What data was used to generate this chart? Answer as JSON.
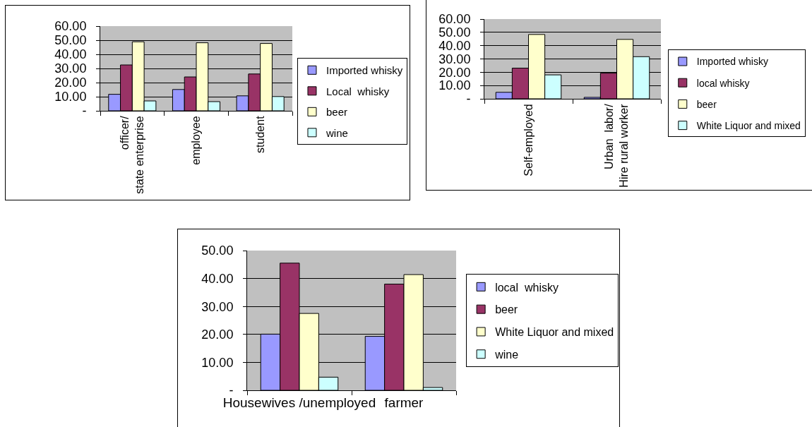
{
  "chart_data": [
    {
      "type": "bar",
      "categories": [
        "officer/\nstate enterprise",
        "employee",
        "student"
      ],
      "series": [
        {
          "name": "Imported whisky",
          "color": "#9999ff",
          "values": [
            11.7,
            15.1,
            10.6
          ]
        },
        {
          "name": "Local  whisky",
          "color": "#993366",
          "values": [
            32.5,
            24.0,
            26.1
          ]
        },
        {
          "name": "beer",
          "color": "#ffffcc",
          "values": [
            48.9,
            48.2,
            47.7
          ]
        },
        {
          "name": "wine",
          "color": "#ccffff",
          "values": [
            7.0,
            6.5,
            10.1
          ]
        }
      ],
      "ylim": [
        0,
        60
      ],
      "yticks": [
        {
          "value": 0,
          "label": "-"
        },
        {
          "value": 10,
          "label": "10.00"
        },
        {
          "value": 20,
          "label": "20.00"
        },
        {
          "value": 30,
          "label": "30.00"
        },
        {
          "value": 40,
          "label": "40.00"
        },
        {
          "value": 50,
          "label": "50.00"
        },
        {
          "value": 60,
          "label": "60.00"
        }
      ],
      "grid": "y",
      "legend": "right"
    },
    {
      "type": "bar",
      "categories": [
        "Self-employed",
        "Urban  labor/\nHire rural worker"
      ],
      "series": [
        {
          "name": "Imported whisky",
          "color": "#9999ff",
          "values": [
            4.9,
            1.1
          ]
        },
        {
          "name": "local whisky",
          "color": "#993366",
          "values": [
            23.1,
            19.3
          ]
        },
        {
          "name": "beer",
          "color": "#ffffcc",
          "values": [
            48.4,
            44.7
          ]
        },
        {
          "name": "White Liquor and mixed",
          "color": "#ccffff",
          "values": [
            18.0,
            31.7
          ]
        }
      ],
      "ylim": [
        0,
        60
      ],
      "yticks": [
        {
          "value": 0,
          "label": "-"
        },
        {
          "value": 10,
          "label": "10.00"
        },
        {
          "value": 20,
          "label": "20.00"
        },
        {
          "value": 30,
          "label": "30.00"
        },
        {
          "value": 40,
          "label": "40.00"
        },
        {
          "value": 50,
          "label": "50.00"
        },
        {
          "value": 60,
          "label": "60.00"
        }
      ],
      "grid": "y",
      "legend": "right"
    },
    {
      "type": "bar",
      "categories": [
        "Housewives /unemployed",
        "farmer"
      ],
      "series": [
        {
          "name": "local  whisky",
          "color": "#9999ff",
          "values": [
            20.1,
            19.3
          ]
        },
        {
          "name": "beer",
          "color": "#993366",
          "values": [
            45.5,
            38.0
          ]
        },
        {
          "name": "White Liquor and mixed",
          "color": "#ffffcc",
          "values": [
            27.5,
            41.4
          ]
        },
        {
          "name": "wine",
          "color": "#ccffff",
          "values": [
            4.7,
            1.0
          ]
        }
      ],
      "ylim": [
        0,
        50
      ],
      "yticks": [
        {
          "value": 0,
          "label": "-"
        },
        {
          "value": 10,
          "label": "10.00"
        },
        {
          "value": 20,
          "label": "20.00"
        },
        {
          "value": 30,
          "label": "30.00"
        },
        {
          "value": 40,
          "label": "40.00"
        },
        {
          "value": 50,
          "label": "50.00"
        }
      ],
      "grid": "y",
      "legend": "right"
    }
  ]
}
